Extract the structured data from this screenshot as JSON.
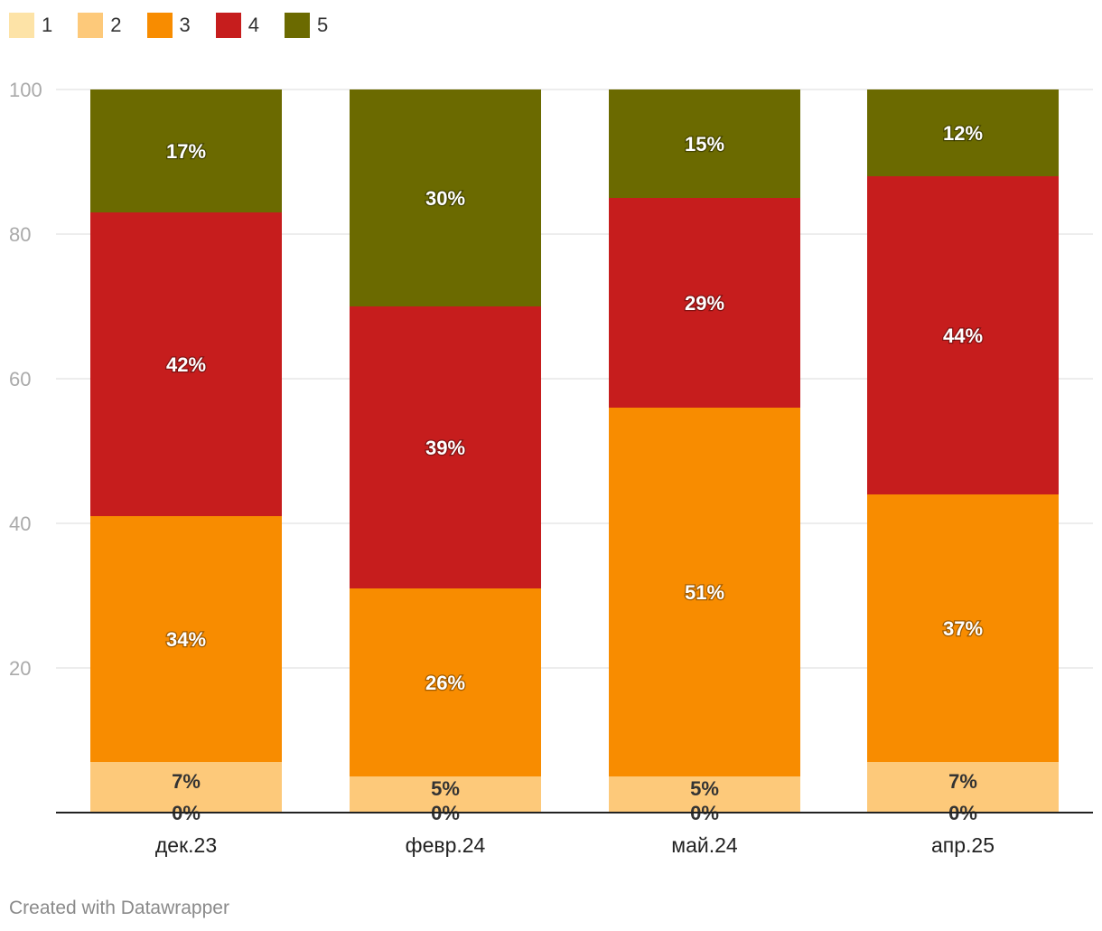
{
  "chart_data": {
    "type": "bar",
    "stacked": true,
    "categories": [
      "дек.23",
      "февр.24",
      "май.24",
      "апр.25"
    ],
    "series": [
      {
        "name": "1",
        "color": "#fde3a7",
        "values": [
          0,
          0,
          0,
          0
        ],
        "labels": [
          "0%",
          "0%",
          "0%",
          "0%"
        ]
      },
      {
        "name": "2",
        "color": "#fdc97a",
        "values": [
          7,
          5,
          5,
          7
        ],
        "labels": [
          "7%",
          "5%",
          "5%",
          "7%"
        ]
      },
      {
        "name": "3",
        "color": "#f88c00",
        "values": [
          34,
          26,
          51,
          37
        ],
        "labels": [
          "34%",
          "26%",
          "51%",
          "37%"
        ]
      },
      {
        "name": "4",
        "color": "#c61d1d",
        "values": [
          42,
          39,
          29,
          44
        ],
        "labels": [
          "42%",
          "39%",
          "29%",
          "44%"
        ]
      },
      {
        "name": "5",
        "color": "#6b6a00",
        "values": [
          17,
          30,
          15,
          12
        ],
        "labels": [
          "17%",
          "30%",
          "15%",
          "12%"
        ]
      }
    ],
    "ylim": [
      0,
      100
    ],
    "yticks": [
      "20",
      "40",
      "60",
      "80",
      "100"
    ],
    "grid": true,
    "legend_position": "top-left",
    "xlabel": "",
    "ylabel": ""
  },
  "footer": {
    "credit": "Created with Datawrapper"
  }
}
